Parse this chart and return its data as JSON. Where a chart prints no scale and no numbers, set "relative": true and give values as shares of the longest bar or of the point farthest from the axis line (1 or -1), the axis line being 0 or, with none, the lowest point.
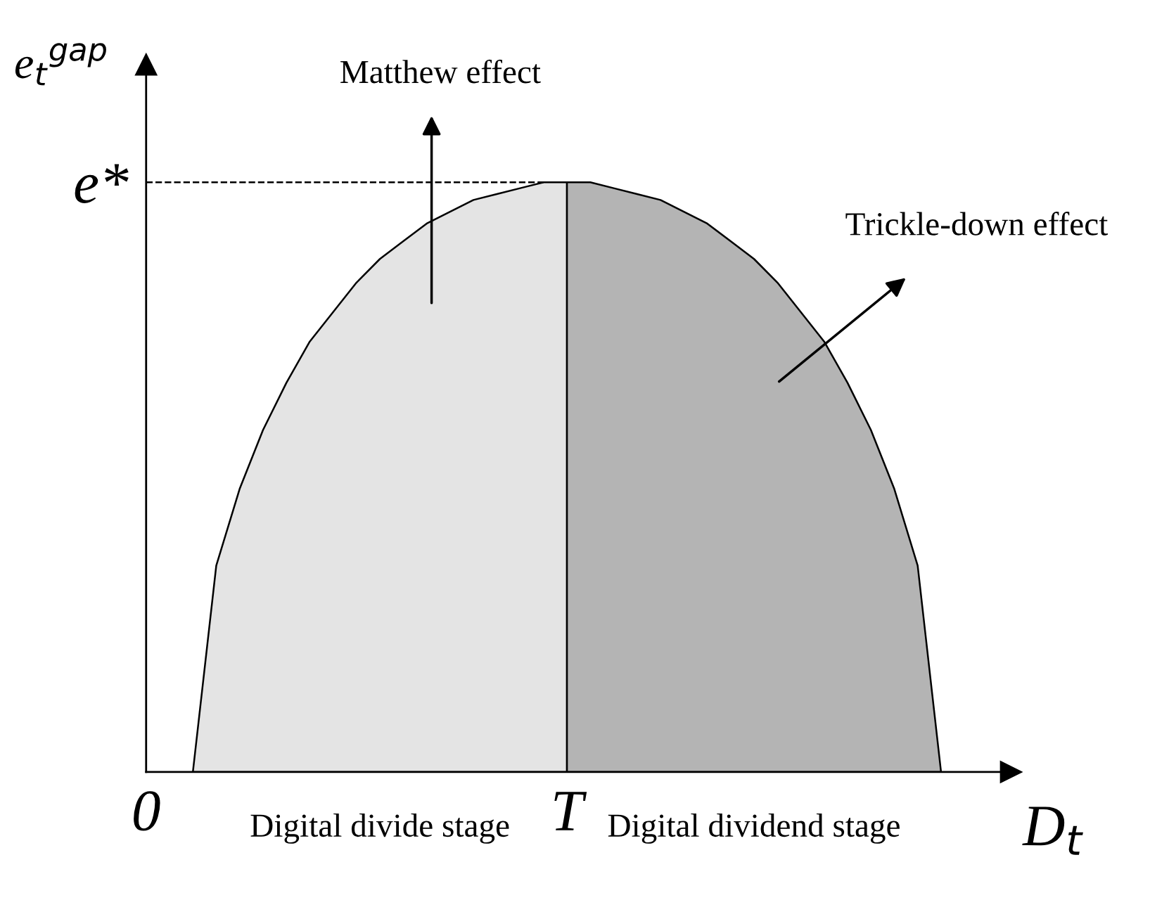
{
  "chart_data": {
    "type": "area",
    "relative": true,
    "xlabel": "D$_{t}$",
    "ylabel": "e$_{t}$$^{gap}$",
    "grid": false,
    "categories": [
      "0",
      null,
      null,
      null,
      null,
      null,
      null,
      null,
      null,
      null,
      null,
      null,
      null,
      null,
      null,
      null,
      null,
      null,
      "T",
      null,
      null,
      null,
      null,
      null,
      null,
      null,
      null,
      null,
      null,
      null,
      null,
      null,
      null,
      null,
      null,
      null,
      null,
      null
    ],
    "series": [
      {
        "color": "#e4e4e4",
        "values": [
          null,
          null,
          0,
          0.35,
          0.48,
          0.58,
          0.66,
          0.73,
          0.78,
          0.83,
          0.87,
          0.9,
          0.93,
          0.95,
          0.97,
          0.98,
          0.99,
          1,
          1,
          null,
          null,
          null,
          null,
          null,
          null,
          null,
          null,
          null,
          null,
          null,
          null,
          null,
          null,
          null,
          null,
          null,
          null,
          null
        ]
      },
      {
        "color": "#b4b4b4",
        "values": [
          null,
          null,
          null,
          null,
          null,
          null,
          null,
          null,
          null,
          null,
          null,
          null,
          null,
          null,
          null,
          null,
          null,
          null,
          1,
          1,
          0.99,
          0.98,
          0.97,
          0.95,
          0.93,
          0.9,
          0.87,
          0.83,
          0.78,
          0.73,
          0.66,
          0.58,
          0.48,
          0.35,
          0,
          null,
          null,
          null
        ]
      }
    ],
    "ref_lines": [
      {
        "axis": "y",
        "value": 1,
        "label": "e*",
        "line_style": "dashed",
        "color": "#000000"
      }
    ],
    "annotations": [
      "Matthew effect",
      "Trickle-down effect",
      "Digital divide stage",
      "Digital dividend stage"
    ]
  }
}
